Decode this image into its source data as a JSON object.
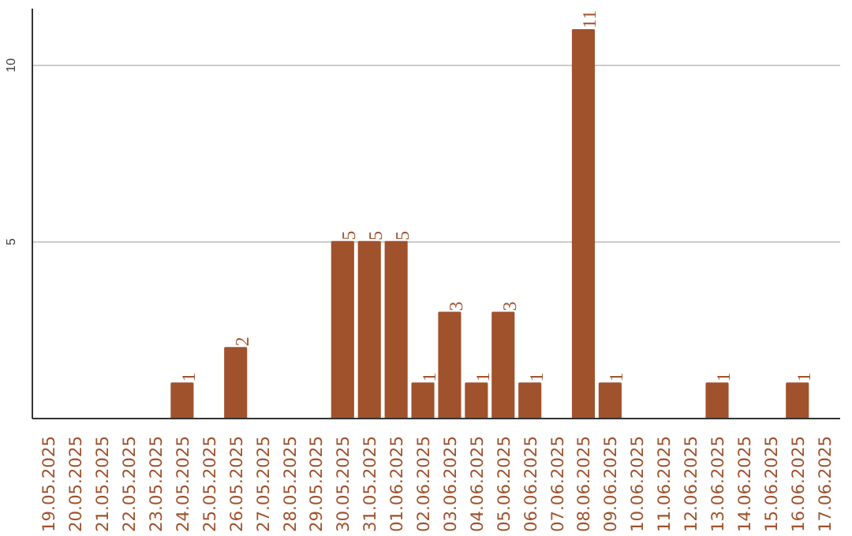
{
  "chart_data": {
    "type": "bar",
    "categories": [
      "19.05.2025",
      "20.05.2025",
      "21.05.2025",
      "22.05.2025",
      "23.05.2025",
      "24.05.2025",
      "25.05.2025",
      "26.05.2025",
      "27.05.2025",
      "28.05.2025",
      "29.05.2025",
      "30.05.2025",
      "31.05.2025",
      "01.06.2025",
      "02.06.2025",
      "03.06.2025",
      "04.06.2025",
      "05.06.2025",
      "06.06.2025",
      "07.06.2025",
      "08.06.2025",
      "09.06.2025",
      "10.06.2025",
      "11.06.2025",
      "12.06.2025",
      "13.06.2025",
      "14.06.2025",
      "15.06.2025",
      "16.06.2025",
      "17.06.2025"
    ],
    "values": [
      0,
      0,
      0,
      0,
      0,
      1,
      0,
      2,
      0,
      0,
      0,
      5,
      5,
      5,
      1,
      3,
      1,
      3,
      1,
      0,
      11,
      1,
      0,
      0,
      0,
      1,
      0,
      0,
      1,
      0
    ],
    "value_labels": [
      null,
      null,
      null,
      null,
      null,
      "1",
      null,
      "2",
      null,
      null,
      null,
      "5",
      "5",
      "5",
      "1",
      "3",
      "1",
      "3",
      "1",
      null,
      "11",
      "1",
      null,
      null,
      null,
      "1",
      null,
      null,
      "1",
      null
    ],
    "color": "#a0522d",
    "ylim": [
      0,
      11.6
    ],
    "yticks": [
      5,
      10
    ],
    "grid": "y"
  }
}
